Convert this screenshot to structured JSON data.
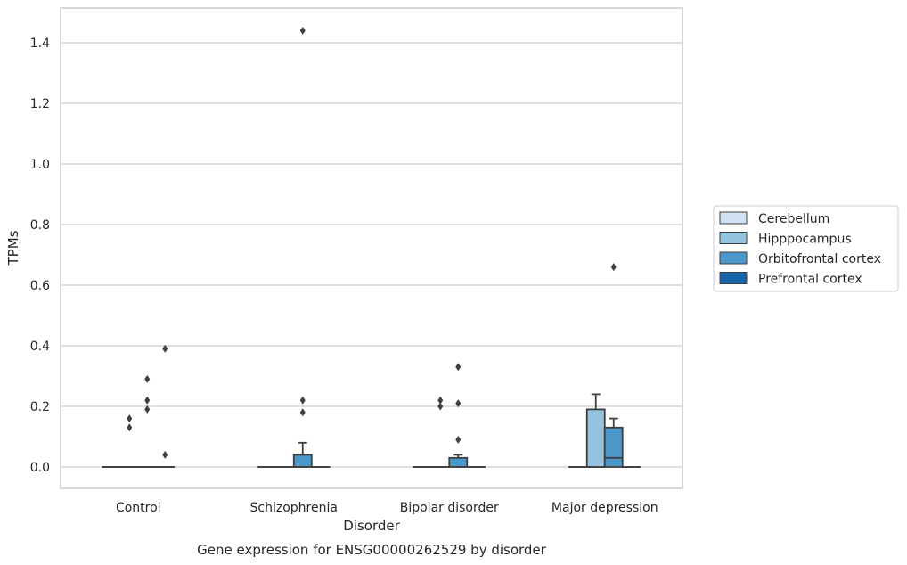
{
  "chart_data": {
    "type": "box",
    "caption": "Gene expression for ENSG00000262529 by disorder",
    "xlabel": "Disorder",
    "ylabel": "TPMs",
    "ylim": [
      -0.07,
      1.52
    ],
    "yticks": [
      0.0,
      0.2,
      0.4,
      0.6,
      0.8,
      1.0,
      1.2,
      1.4
    ],
    "ytick_labels": [
      "0.0",
      "0.2",
      "0.4",
      "0.6",
      "0.8",
      "1.0",
      "1.2",
      "1.4"
    ],
    "grid": "horizontal",
    "legend_position": "right",
    "categories": [
      "Control",
      "Schizophrenia",
      "Bipolar disorder",
      "Major depression"
    ],
    "series": [
      {
        "name": "Cerebellum",
        "color": "#d0e1f2",
        "boxes": [
          {
            "category": "Control",
            "q1": 0,
            "median": 0,
            "q3": 0,
            "whisker_low": 0,
            "whisker_high": 0,
            "outliers": []
          },
          {
            "category": "Schizophrenia",
            "q1": 0,
            "median": 0,
            "q3": 0,
            "whisker_low": 0,
            "whisker_high": 0,
            "outliers": []
          },
          {
            "category": "Bipolar disorder",
            "q1": 0,
            "median": 0,
            "q3": 0,
            "whisker_low": 0,
            "whisker_high": 0,
            "outliers": []
          },
          {
            "category": "Major depression",
            "q1": 0,
            "median": 0,
            "q3": 0,
            "whisker_low": 0,
            "whisker_high": 0,
            "outliers": []
          }
        ]
      },
      {
        "name": "Hipppocampus",
        "color": "#94c4df",
        "boxes": [
          {
            "category": "Control",
            "q1": 0,
            "median": 0,
            "q3": 0,
            "whisker_low": 0,
            "whisker_high": 0,
            "outliers": [
              0.13,
              0.16
            ]
          },
          {
            "category": "Schizophrenia",
            "q1": 0,
            "median": 0,
            "q3": 0,
            "whisker_low": 0,
            "whisker_high": 0,
            "outliers": []
          },
          {
            "category": "Bipolar disorder",
            "q1": 0,
            "median": 0,
            "q3": 0,
            "whisker_low": 0,
            "whisker_high": 0,
            "outliers": [
              0.2,
              0.22
            ]
          },
          {
            "category": "Major depression",
            "q1": 0,
            "median": 0,
            "q3": 0.19,
            "whisker_low": 0,
            "whisker_high": 0.24,
            "outliers": []
          }
        ]
      },
      {
        "name": "Orbitofrontal cortex",
        "color": "#4a98c9",
        "boxes": [
          {
            "category": "Control",
            "q1": 0,
            "median": 0,
            "q3": 0,
            "whisker_low": 0,
            "whisker_high": 0,
            "outliers": [
              0.19,
              0.22,
              0.29
            ]
          },
          {
            "category": "Schizophrenia",
            "q1": 0,
            "median": 0,
            "q3": 0.04,
            "whisker_low": 0,
            "whisker_high": 0.08,
            "outliers": [
              0.18,
              0.22,
              1.44
            ]
          },
          {
            "category": "Bipolar disorder",
            "q1": 0,
            "median": 0,
            "q3": 0.03,
            "whisker_low": 0,
            "whisker_high": 0.04,
            "outliers": [
              0.09,
              0.21,
              0.33
            ]
          },
          {
            "category": "Major depression",
            "q1": 0,
            "median": 0.03,
            "q3": 0.13,
            "whisker_low": 0,
            "whisker_high": 0.16,
            "outliers": [
              0.66
            ]
          }
        ]
      },
      {
        "name": "Prefrontal cortex",
        "color": "#1764ab",
        "boxes": [
          {
            "category": "Control",
            "q1": 0,
            "median": 0,
            "q3": 0,
            "whisker_low": 0,
            "whisker_high": 0,
            "outliers": [
              0.04,
              0.39
            ]
          },
          {
            "category": "Schizophrenia",
            "q1": 0,
            "median": 0,
            "q3": 0,
            "whisker_low": 0,
            "whisker_high": 0,
            "outliers": []
          },
          {
            "category": "Bipolar disorder",
            "q1": 0,
            "median": 0,
            "q3": 0,
            "whisker_low": 0,
            "whisker_high": 0,
            "outliers": []
          },
          {
            "category": "Major depression",
            "q1": 0,
            "median": 0,
            "q3": 0,
            "whisker_low": 0,
            "whisker_high": 0,
            "outliers": []
          }
        ]
      }
    ]
  }
}
